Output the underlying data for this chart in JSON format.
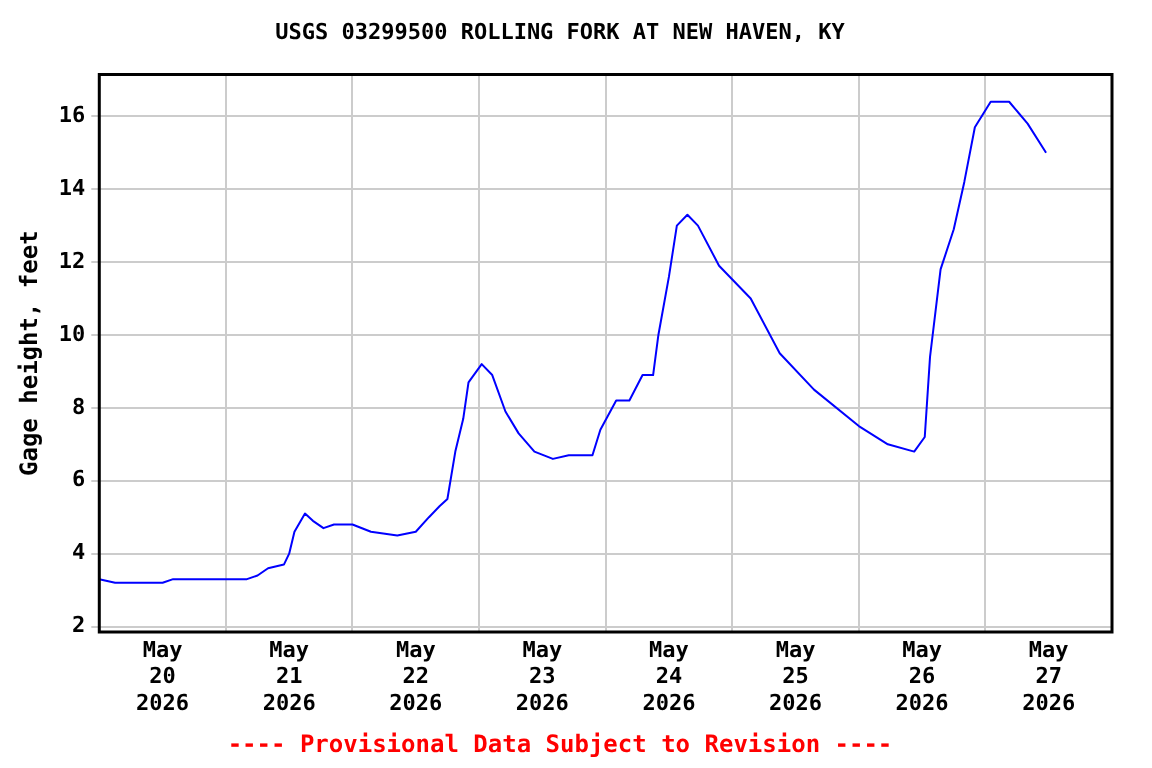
{
  "chart_data": {
    "type": "line",
    "title": "USGS 03299500 ROLLING FORK AT NEW HAVEN, KY",
    "ylabel": "Gage height, feet",
    "annotations": [
      "---- Provisional Data Subject to Revision ----"
    ],
    "x": [
      "2026-05-20T00:00",
      "2026-05-20T03:00",
      "2026-05-20T12:00",
      "2026-05-20T14:00",
      "2026-05-20T18:00",
      "2026-05-20T21:00",
      "2026-05-21T04:00",
      "2026-05-21T06:00",
      "2026-05-21T08:00",
      "2026-05-21T11:00",
      "2026-05-21T12:00",
      "2026-05-21T13:00",
      "2026-05-21T15:00",
      "2026-05-21T16:30",
      "2026-05-21T18:30",
      "2026-05-21T20:30",
      "2026-05-22T00:00",
      "2026-05-22T03:30",
      "2026-05-22T08:30",
      "2026-05-22T12:00",
      "2026-05-22T14:30",
      "2026-05-22T16:30",
      "2026-05-22T18:00",
      "2026-05-22T19:30",
      "2026-05-22T21:00",
      "2026-05-22T22:00",
      "2026-05-23T00:30",
      "2026-05-23T02:30",
      "2026-05-23T05:00",
      "2026-05-23T07:30",
      "2026-05-23T10:30",
      "2026-05-23T14:00",
      "2026-05-23T17:00",
      "2026-05-23T21:30",
      "2026-05-23T23:00",
      "2026-05-24T02:00",
      "2026-05-24T04:30",
      "2026-05-24T07:00",
      "2026-05-24T09:00",
      "2026-05-24T10:00",
      "2026-05-24T12:00",
      "2026-05-24T13:30",
      "2026-05-24T15:30",
      "2026-05-24T17:30",
      "2026-05-24T21:30",
      "2026-05-25T03:30",
      "2026-05-25T09:00",
      "2026-05-25T15:30",
      "2026-05-26T00:00",
      "2026-05-26T05:30",
      "2026-05-26T10:30",
      "2026-05-26T12:30",
      "2026-05-26T13:30",
      "2026-05-26T15:30",
      "2026-05-26T18:00",
      "2026-05-26T20:00",
      "2026-05-26T22:00",
      "2026-05-27T01:00",
      "2026-05-27T04:30",
      "2026-05-27T08:00",
      "2026-05-27T11:30"
    ],
    "series": [
      {
        "color": "#0000ff",
        "values": [
          3.3,
          3.2,
          3.2,
          3.3,
          3.3,
          3.3,
          3.3,
          3.4,
          3.6,
          3.7,
          4.0,
          4.6,
          5.1,
          4.9,
          4.7,
          4.8,
          4.8,
          4.6,
          4.5,
          4.6,
          5.0,
          5.3,
          5.5,
          6.8,
          7.7,
          8.7,
          9.2,
          8.9,
          7.9,
          7.3,
          6.8,
          6.6,
          6.7,
          6.7,
          7.4,
          8.2,
          8.2,
          8.9,
          8.9,
          10.0,
          11.6,
          13.0,
          13.3,
          13.0,
          11.9,
          11.0,
          9.5,
          8.5,
          7.5,
          7.0,
          6.8,
          7.2,
          9.4,
          11.8,
          12.9,
          14.2,
          15.7,
          16.4,
          16.4,
          15.8,
          15.0
        ]
      }
    ],
    "xlim": [
      "2026-05-20T00:00",
      "2026-05-28T00:00"
    ],
    "xticks": [
      {
        "value": "2026-05-20T00:00",
        "label": null
      },
      {
        "value": "2026-05-20T12:00",
        "label": "May 20 2026"
      },
      {
        "value": "2026-05-21T00:00",
        "label": null
      },
      {
        "value": "2026-05-21T12:00",
        "label": "May 21 2026"
      },
      {
        "value": "2026-05-22T00:00",
        "label": null
      },
      {
        "value": "2026-05-22T12:00",
        "label": "May 22 2026"
      },
      {
        "value": "2026-05-23T00:00",
        "label": null
      },
      {
        "value": "2026-05-23T12:00",
        "label": "May 23 2026"
      },
      {
        "value": "2026-05-24T00:00",
        "label": null
      },
      {
        "value": "2026-05-24T12:00",
        "label": "May 24 2026"
      },
      {
        "value": "2026-05-25T00:00",
        "label": null
      },
      {
        "value": "2026-05-25T12:00",
        "label": "May 25 2026"
      },
      {
        "value": "2026-05-26T00:00",
        "label": null
      },
      {
        "value": "2026-05-26T12:00",
        "label": "May 26 2026"
      },
      {
        "value": "2026-05-27T00:00",
        "label": null
      },
      {
        "value": "2026-05-27T12:00",
        "label": "May 27 2026"
      },
      {
        "value": "2026-05-28T00:00",
        "label": null
      }
    ],
    "ylim": [
      1.85,
      17.15
    ],
    "yticks": [
      2,
      4,
      6,
      8,
      10,
      12,
      14,
      16
    ],
    "grid": true,
    "legend": false,
    "marker": "none",
    "line_style": "solid"
  }
}
